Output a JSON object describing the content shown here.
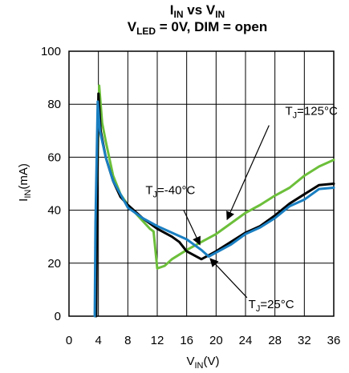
{
  "chart_data": {
    "type": "line",
    "title": {
      "line1": {
        "a": "I",
        "a_sub": "IN",
        "b": " vs V",
        "b_sub": "IN"
      },
      "line2": {
        "a": "V",
        "a_sub": "LED",
        "b": " = 0V, DIM = open"
      }
    },
    "xlabel": {
      "main": "V",
      "sub": "IN",
      "tail": "(V)"
    },
    "ylabel": {
      "main": "I",
      "sub": "IN",
      "tail": "(mA)"
    },
    "xlim": [
      0,
      36
    ],
    "ylim": [
      0,
      100
    ],
    "xticks": [
      0,
      4,
      8,
      12,
      16,
      20,
      24,
      28,
      32,
      36
    ],
    "yticks": [
      0,
      20,
      40,
      60,
      80,
      100
    ],
    "grid": true,
    "legend": "none",
    "series": [
      {
        "key": "t25",
        "color": "#000000",
        "x": [
          3.7,
          3.8,
          4.0,
          4.3,
          5,
          6,
          7,
          8,
          10,
          12,
          14,
          15,
          16,
          18,
          19,
          20,
          22,
          24,
          26,
          28,
          30,
          32,
          34,
          36
        ],
        "y": [
          0,
          40,
          84,
          70,
          60,
          51,
          45,
          42,
          37,
          33,
          30,
          28,
          24.5,
          21.5,
          23,
          24.5,
          28,
          31.5,
          34,
          38,
          42.5,
          46,
          49.5,
          50
        ]
      },
      {
        "key": "tm40",
        "color": "#1a7fc1",
        "x": [
          3.5,
          3.6,
          3.9,
          4.2,
          5,
          6,
          7,
          8,
          10,
          12,
          14,
          16,
          18,
          19,
          20,
          22,
          24,
          26,
          28,
          30,
          32,
          34,
          36
        ],
        "y": [
          0,
          35,
          81,
          70,
          60,
          51,
          46,
          41,
          37,
          34,
          31.5,
          29,
          25,
          22.5,
          24,
          27,
          31,
          33.5,
          37,
          41.5,
          44,
          48,
          48.5
        ]
      },
      {
        "key": "t125",
        "color": "#6cbf3a",
        "x": [
          3.6,
          3.8,
          4.1,
          4.5,
          5,
          6,
          7,
          8,
          9,
          10,
          11,
          11.5,
          12,
          13,
          14,
          16,
          18,
          20,
          22,
          24,
          26,
          28,
          30,
          32,
          34,
          36
        ],
        "y": [
          0,
          45,
          87,
          73,
          66,
          53,
          46,
          42,
          39,
          36,
          33,
          32,
          18,
          19,
          21.5,
          25,
          28,
          31,
          35,
          39,
          42,
          45.5,
          48.5,
          53,
          56.5,
          59
        ]
      }
    ],
    "annotations": [
      {
        "key": "a125",
        "series": "t125",
        "text_main": "T",
        "text_sub": "J",
        "text_tail": "=125°C",
        "text_pos": [
          29.4,
          76
        ],
        "arrow_from": [
          27.2,
          72
        ],
        "arrow_to": [
          21.5,
          36.5
        ]
      },
      {
        "key": "am40",
        "series": "tm40",
        "text_main": "T",
        "text_sub": "J",
        "text_tail": "=-40°C",
        "text_pos": [
          10.4,
          46
        ],
        "arrow_from": [
          15.6,
          40
        ],
        "arrow_to": [
          17.8,
          27
        ]
      },
      {
        "key": "a25",
        "series": "t25",
        "text_main": "T",
        "text_sub": "J",
        "text_tail": "=25°C",
        "text_pos": [
          24.4,
          3
        ],
        "arrow_from": [
          24.2,
          7
        ],
        "arrow_to": [
          19.2,
          21.7
        ]
      }
    ]
  }
}
